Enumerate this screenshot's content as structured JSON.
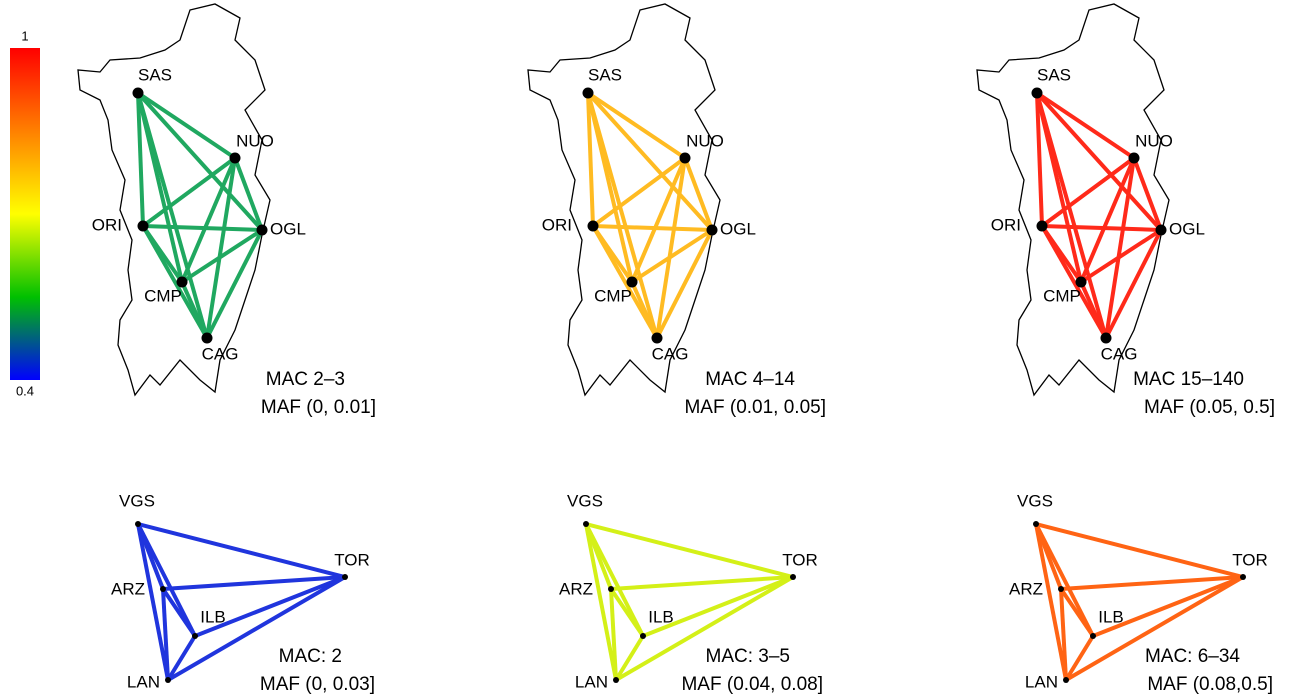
{
  "colorbar": {
    "max_label": "1",
    "min_label": "0.4",
    "colors": [
      "#ff0000",
      "#ff8000",
      "#ffff00",
      "#00c000",
      "#0000ff"
    ]
  },
  "top_panels": [
    {
      "mac": "MAC 2–3",
      "maf": "MAF (0, 0.01]",
      "edge_color": "#20a860",
      "nodes": [
        "SAS",
        "NUO",
        "ORI",
        "OGL",
        "CMP",
        "CAG"
      ]
    },
    {
      "mac": "MAC 4–14",
      "maf": "MAF (0.01, 0.05]",
      "edge_color": "#ffbb22",
      "nodes": [
        "SAS",
        "NUO",
        "ORI",
        "OGL",
        "CMP",
        "CAG"
      ]
    },
    {
      "mac": "MAC 15–140",
      "maf": "MAF (0.05, 0.5]",
      "edge_color": "#ff2a1a",
      "nodes": [
        "SAS",
        "NUO",
        "ORI",
        "OGL",
        "CMP",
        "CAG"
      ]
    }
  ],
  "bottom_panels": [
    {
      "mac": "MAC: 2",
      "maf": "MAF (0, 0.03]",
      "edge_color": "#2035dd",
      "nodes": [
        "VGS",
        "TOR",
        "ARZ",
        "ILB",
        "LAN"
      ]
    },
    {
      "mac": "MAC: 3–5",
      "maf": "MAF (0.04, 0.08]",
      "edge_color": "#d4f018",
      "nodes": [
        "VGS",
        "TOR",
        "ARZ",
        "ILB",
        "LAN"
      ]
    },
    {
      "mac": "MAC: 6–34",
      "maf": "MAF (0.08,0.5]",
      "edge_color": "#ff6414",
      "nodes": [
        "VGS",
        "TOR",
        "ARZ",
        "ILB",
        "LAN"
      ]
    }
  ]
}
